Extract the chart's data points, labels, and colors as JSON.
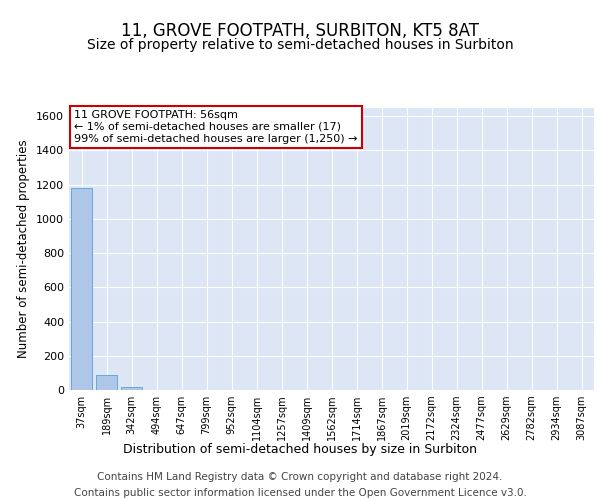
{
  "title": "11, GROVE FOOTPATH, SURBITON, KT5 8AT",
  "subtitle": "Size of property relative to semi-detached houses in Surbiton",
  "xlabel": "Distribution of semi-detached houses by size in Surbiton",
  "ylabel": "Number of semi-detached properties",
  "categories": [
    "37sqm",
    "189sqm",
    "342sqm",
    "494sqm",
    "647sqm",
    "799sqm",
    "952sqm",
    "1104sqm",
    "1257sqm",
    "1409sqm",
    "1562sqm",
    "1714sqm",
    "1867sqm",
    "2019sqm",
    "2172sqm",
    "2324sqm",
    "2477sqm",
    "2629sqm",
    "2782sqm",
    "2934sqm",
    "3087sqm"
  ],
  "values": [
    1180,
    90,
    20,
    2,
    1,
    0,
    0,
    0,
    0,
    0,
    0,
    0,
    0,
    0,
    0,
    0,
    0,
    0,
    0,
    0,
    0
  ],
  "bar_color": "#aec6e8",
  "bar_edge_color": "#5a9fd4",
  "annotation_line1": "11 GROVE FOOTPATH: 56sqm",
  "annotation_line2": "← 1% of semi-detached houses are smaller (17)",
  "annotation_line3": "99% of semi-detached houses are larger (1,250) →",
  "annotation_box_color": "#ffffff",
  "annotation_border_color": "#cc0000",
  "ylim": [
    0,
    1650
  ],
  "yticks": [
    0,
    200,
    400,
    600,
    800,
    1000,
    1200,
    1400,
    1600
  ],
  "bg_color": "#ffffff",
  "plot_bg_color": "#dce6f5",
  "grid_color": "#ffffff",
  "footer_line1": "Contains HM Land Registry data © Crown copyright and database right 2024.",
  "footer_line2": "Contains public sector information licensed under the Open Government Licence v3.0.",
  "title_fontsize": 12,
  "subtitle_fontsize": 10,
  "xlabel_fontsize": 9,
  "ylabel_fontsize": 8.5,
  "tick_fontsize": 8,
  "footer_fontsize": 7.5,
  "annot_fontsize": 8
}
